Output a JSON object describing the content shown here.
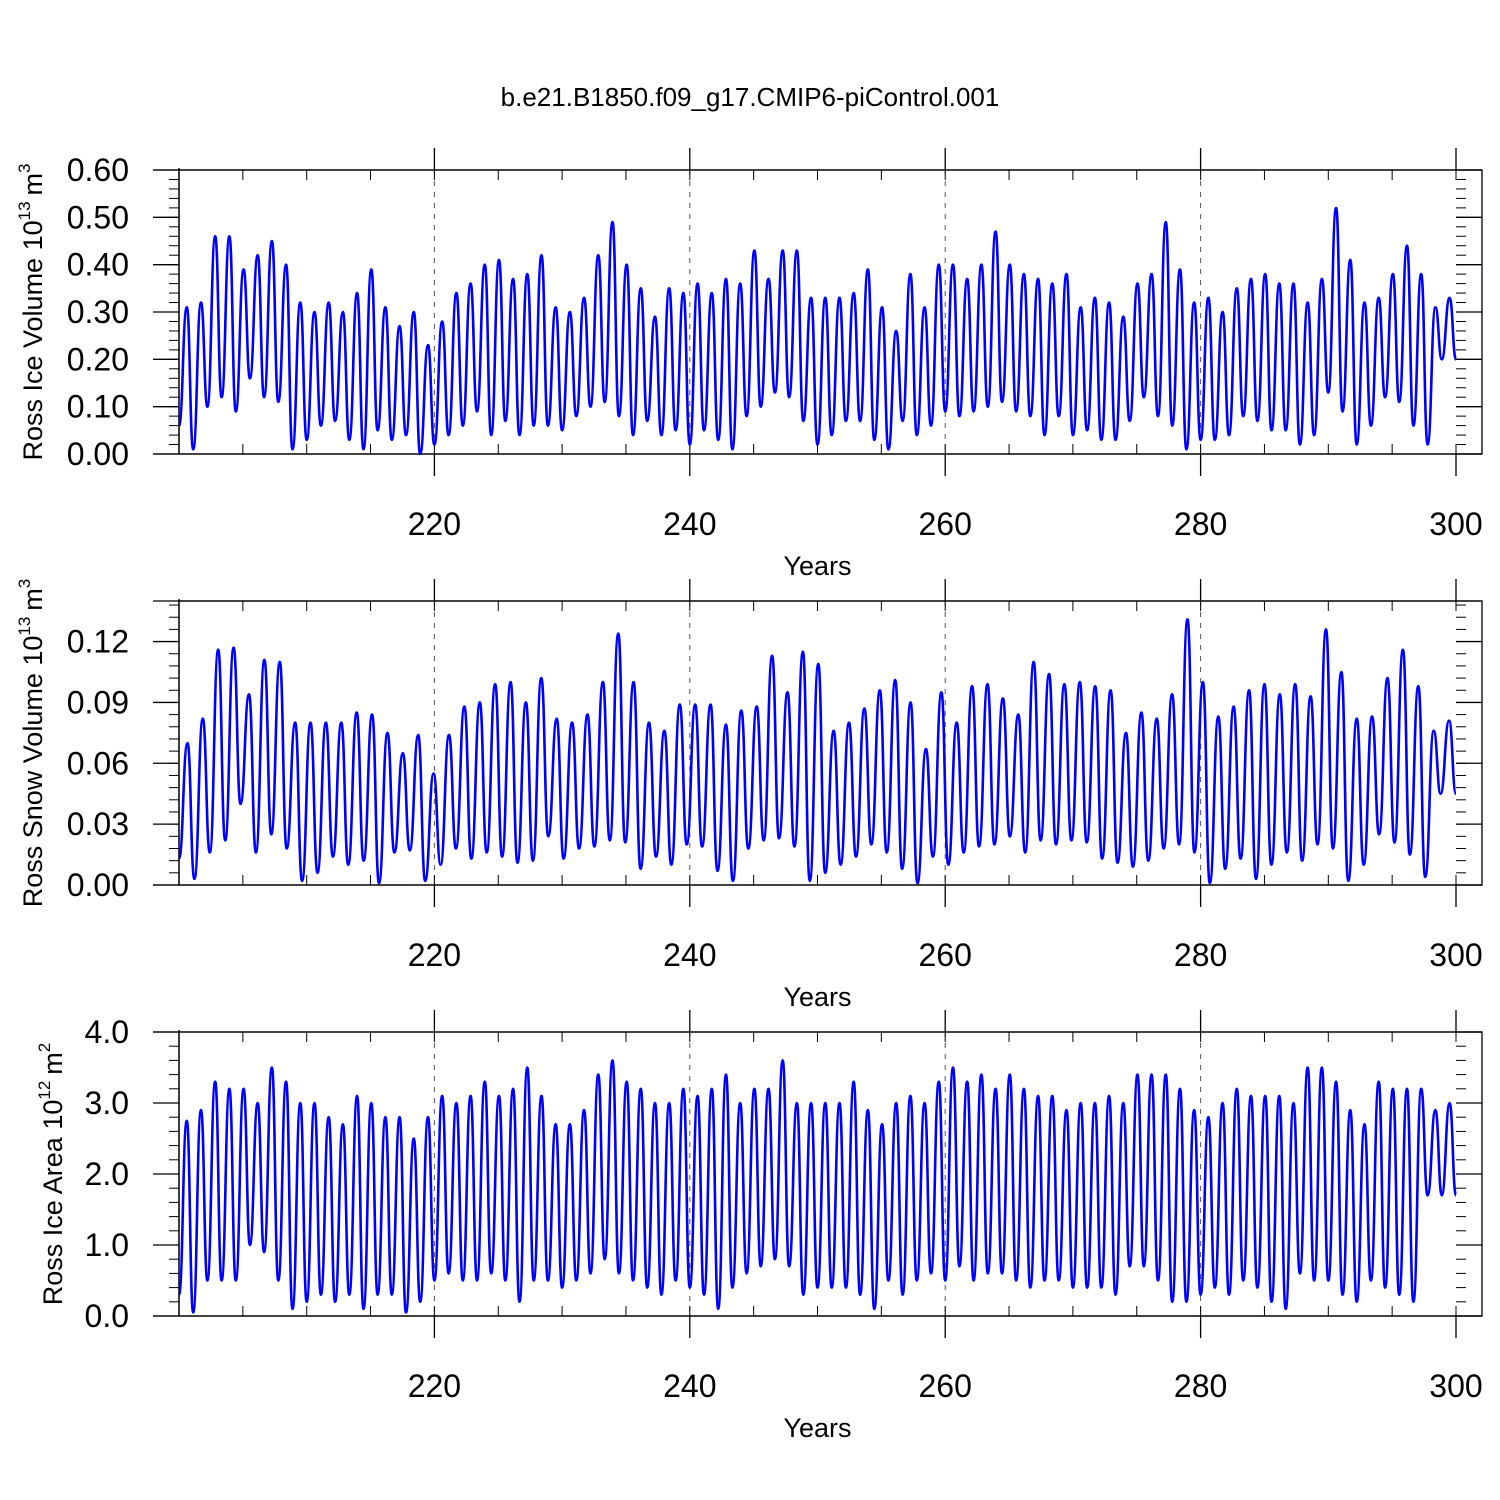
{
  "title": "b.e21.B1850.f09_g17.CMIP6-piControl.001",
  "line_color": "#0000ff",
  "chart_data": [
    {
      "type": "line",
      "series": [
        {
          "name": "Ross Ice Volume",
          "peaks": [
            0.31,
            0.32,
            0.46,
            0.46,
            0.39,
            0.42,
            0.45,
            0.4,
            0.32,
            0.3,
            0.32,
            0.3,
            0.34,
            0.39,
            0.31,
            0.27,
            0.3,
            0.23,
            0.28,
            0.34,
            0.36,
            0.4,
            0.41,
            0.37,
            0.38,
            0.42,
            0.31,
            0.3,
            0.33,
            0.42,
            0.49,
            0.4,
            0.35,
            0.29,
            0.35,
            0.34,
            0.36,
            0.34,
            0.37,
            0.36,
            0.43,
            0.37,
            0.43,
            0.43,
            0.33,
            0.33,
            0.33,
            0.34,
            0.39,
            0.31,
            0.26,
            0.38,
            0.31,
            0.4,
            0.4,
            0.37,
            0.4,
            0.47,
            0.4,
            0.38,
            0.37,
            0.36,
            0.38,
            0.31,
            0.33,
            0.32,
            0.29,
            0.36,
            0.38,
            0.49,
            0.39,
            0.32,
            0.33,
            0.3,
            0.35,
            0.37,
            0.38,
            0.36,
            0.36,
            0.32,
            0.37,
            0.52,
            0.41,
            0.32,
            0.33,
            0.38,
            0.44,
            0.38,
            0.31,
            0.33
          ],
          "troughs": [
            0.06,
            0.01,
            0.1,
            0.12,
            0.09,
            0.16,
            0.12,
            0.11,
            0.01,
            0.03,
            0.06,
            0.07,
            0.03,
            0.01,
            0.05,
            0.03,
            0.04,
            0.0,
            0.02,
            0.04,
            0.06,
            0.09,
            0.04,
            0.07,
            0.04,
            0.06,
            0.06,
            0.05,
            0.08,
            0.1,
            0.11,
            0.08,
            0.04,
            0.07,
            0.04,
            0.05,
            0.02,
            0.05,
            0.03,
            0.01,
            0.08,
            0.1,
            0.13,
            0.12,
            0.07,
            0.02,
            0.04,
            0.07,
            0.07,
            0.03,
            0.01,
            0.07,
            0.04,
            0.06,
            0.09,
            0.08,
            0.09,
            0.1,
            0.11,
            0.09,
            0.08,
            0.04,
            0.08,
            0.04,
            0.05,
            0.03,
            0.03,
            0.07,
            0.12,
            0.08,
            0.06,
            0.01,
            0.03,
            0.03,
            0.04,
            0.08,
            0.07,
            0.05,
            0.05,
            0.02,
            0.04,
            0.13,
            0.09,
            0.02,
            0.06,
            0.12,
            0.11,
            0.06,
            0.02,
            0.2
          ]
        }
      ],
      "xlim": [
        198,
        300
      ],
      "ylim": [
        0,
        0.6
      ],
      "xticks": [
        "220",
        "240",
        "260",
        "280",
        "300"
      ],
      "yticks": [
        "0.00",
        "0.10",
        "0.20",
        "0.30",
        "0.40",
        "0.50",
        "0.60"
      ],
      "xlabel": "Years",
      "ylabel": "Ross Ice Volume 10",
      "ylabel_exp": "13",
      "ylabel_unit": "m",
      "ylabel_unit_exp": "3",
      "grid": "dashed vertical lines at 220, 240, 260, 280"
    },
    {
      "type": "line",
      "series": [
        {
          "name": "Ross Snow Volume",
          "peaks": [
            0.07,
            0.082,
            0.116,
            0.117,
            0.094,
            0.111,
            0.11,
            0.08,
            0.08,
            0.08,
            0.08,
            0.085,
            0.084,
            0.075,
            0.065,
            0.074,
            0.055,
            0.074,
            0.088,
            0.09,
            0.099,
            0.1,
            0.09,
            0.102,
            0.082,
            0.08,
            0.084,
            0.1,
            0.124,
            0.1,
            0.08,
            0.076,
            0.089,
            0.089,
            0.089,
            0.079,
            0.086,
            0.088,
            0.113,
            0.095,
            0.115,
            0.109,
            0.076,
            0.08,
            0.087,
            0.096,
            0.101,
            0.09,
            0.067,
            0.095,
            0.08,
            0.098,
            0.099,
            0.092,
            0.084,
            0.11,
            0.104,
            0.099,
            0.1,
            0.098,
            0.096,
            0.075,
            0.085,
            0.082,
            0.094,
            0.131,
            0.1,
            0.083,
            0.088,
            0.096,
            0.099,
            0.094,
            0.099,
            0.093,
            0.126,
            0.105,
            0.082,
            0.083,
            0.102,
            0.116,
            0.098,
            0.076,
            0.081
          ],
          "troughs": [
            0.013,
            0.003,
            0.016,
            0.022,
            0.04,
            0.016,
            0.025,
            0.018,
            0.002,
            0.006,
            0.014,
            0.01,
            0.012,
            0.001,
            0.016,
            0.017,
            0.002,
            0.01,
            0.018,
            0.013,
            0.016,
            0.014,
            0.011,
            0.012,
            0.024,
            0.013,
            0.018,
            0.019,
            0.022,
            0.021,
            0.008,
            0.014,
            0.01,
            0.02,
            0.019,
            0.007,
            0.002,
            0.018,
            0.022,
            0.023,
            0.019,
            0.002,
            0.006,
            0.01,
            0.014,
            0.02,
            0.016,
            0.008,
            0.001,
            0.014,
            0.01,
            0.016,
            0.019,
            0.02,
            0.024,
            0.016,
            0.022,
            0.02,
            0.022,
            0.021,
            0.013,
            0.011,
            0.009,
            0.012,
            0.018,
            0.02,
            0.016,
            0.001,
            0.008,
            0.013,
            0.003,
            0.01,
            0.016,
            0.012,
            0.02,
            0.018,
            0.002,
            0.01,
            0.025,
            0.021,
            0.015,
            0.004,
            0.045
          ]
        }
      ],
      "xlim": [
        198,
        300
      ],
      "ylim": [
        0,
        0.14
      ],
      "xticks": [
        "220",
        "240",
        "260",
        "280",
        "300"
      ],
      "yticks": [
        "0.00",
        "0.03",
        "0.06",
        "0.09",
        "0.12"
      ],
      "xlabel": "Years",
      "ylabel": "Ross Snow Volume 10",
      "ylabel_exp": "13",
      "ylabel_unit": "m",
      "ylabel_unit_exp": "3",
      "grid": "dashed vertical lines at 220, 240, 260, 280"
    },
    {
      "type": "line",
      "series": [
        {
          "name": "Ross Ice Area",
          "peaks": [
            2.75,
            2.9,
            3.3,
            3.2,
            3.2,
            3.0,
            3.5,
            3.3,
            3.0,
            3.0,
            2.8,
            2.7,
            3.1,
            3.0,
            2.8,
            2.8,
            2.5,
            2.8,
            3.1,
            3.0,
            3.1,
            3.3,
            3.1,
            3.2,
            3.5,
            3.1,
            2.7,
            2.7,
            2.9,
            3.4,
            3.6,
            3.3,
            3.2,
            3.0,
            3.0,
            3.2,
            3.1,
            3.2,
            3.4,
            3.0,
            3.2,
            3.2,
            3.6,
            3.0,
            3.0,
            3.0,
            3.0,
            3.3,
            2.9,
            2.7,
            3.0,
            3.1,
            3.0,
            3.3,
            3.5,
            3.3,
            3.4,
            3.2,
            3.4,
            3.2,
            3.1,
            3.1,
            2.9,
            3.0,
            3.0,
            3.1,
            3.0,
            3.4,
            3.4,
            3.4,
            3.2,
            2.9,
            2.8,
            3.0,
            3.2,
            3.1,
            3.1,
            3.1,
            3.0,
            3.5,
            3.5,
            3.3,
            2.9,
            2.7,
            3.3,
            3.2,
            3.2,
            3.2,
            2.9,
            3.0
          ],
          "troughs": [
            0.3,
            0.05,
            0.5,
            0.5,
            0.5,
            1.0,
            0.9,
            0.5,
            0.1,
            0.2,
            0.3,
            0.2,
            0.3,
            0.1,
            0.3,
            0.3,
            0.05,
            0.2,
            0.5,
            0.6,
            0.5,
            0.5,
            0.6,
            0.5,
            0.2,
            0.5,
            0.5,
            0.4,
            0.5,
            0.6,
            0.8,
            0.6,
            0.5,
            0.4,
            0.3,
            0.5,
            0.4,
            0.3,
            0.1,
            0.4,
            0.6,
            0.7,
            0.8,
            0.7,
            0.3,
            0.4,
            0.4,
            0.4,
            0.3,
            0.1,
            0.5,
            0.3,
            0.5,
            0.6,
            0.5,
            0.7,
            0.5,
            0.6,
            0.6,
            0.5,
            0.4,
            0.5,
            0.5,
            0.4,
            0.4,
            0.4,
            0.3,
            0.7,
            0.7,
            0.5,
            0.2,
            0.2,
            0.3,
            0.4,
            0.3,
            0.5,
            0.4,
            0.2,
            0.1,
            0.6,
            0.5,
            0.5,
            0.3,
            0.2,
            0.5,
            0.4,
            0.3,
            0.2,
            1.7
          ]
        }
      ],
      "xlim": [
        198,
        300
      ],
      "ylim": [
        0,
        4.0
      ],
      "xticks": [
        "220",
        "240",
        "260",
        "280",
        "300"
      ],
      "yticks": [
        "0.0",
        "1.0",
        "2.0",
        "3.0",
        "4.0"
      ],
      "xlabel": "Years",
      "ylabel": "Ross Ice Area 10",
      "ylabel_exp": "12",
      "ylabel_unit": "m",
      "ylabel_unit_exp": "2",
      "grid": "dashed vertical lines at 220, 240, 260, 280"
    }
  ]
}
